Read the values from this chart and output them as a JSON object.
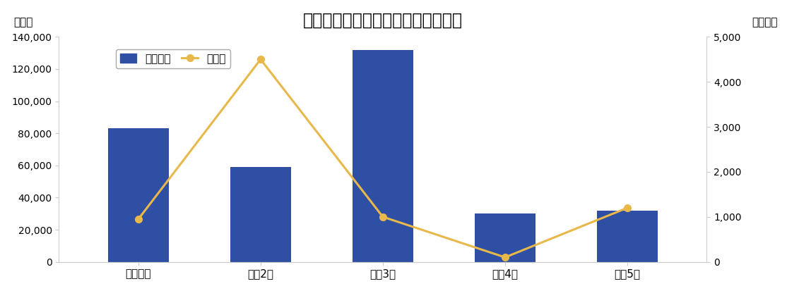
{
  "title": "利殖勧誘事犯の被害者数と被害金額",
  "categories": [
    "令和元年",
    "令和2年",
    "令和3年",
    "令和4年",
    "令和5年"
  ],
  "bar_values": [
    83000,
    59000,
    132000,
    30000,
    32000
  ],
  "line_values": [
    950,
    4500,
    1000,
    100,
    1200
  ],
  "bar_color": "#2E4FA3",
  "line_color": "#E8B84B",
  "left_ylabel": "（人）",
  "right_ylabel": "（億円）",
  "left_ylim": [
    0,
    140000
  ],
  "right_ylim": [
    0,
    5000
  ],
  "left_yticks": [
    0,
    20000,
    40000,
    60000,
    80000,
    100000,
    120000,
    140000
  ],
  "right_yticks": [
    0,
    1000,
    2000,
    3000,
    4000,
    5000
  ],
  "legend_bar_label": "被害人員",
  "legend_line_label": "被害額",
  "background_color": "#ffffff",
  "title_fontsize": 17,
  "axis_fontsize": 11,
  "tick_fontsize": 10,
  "marker": "o",
  "marker_size": 7,
  "line_width": 2.2
}
